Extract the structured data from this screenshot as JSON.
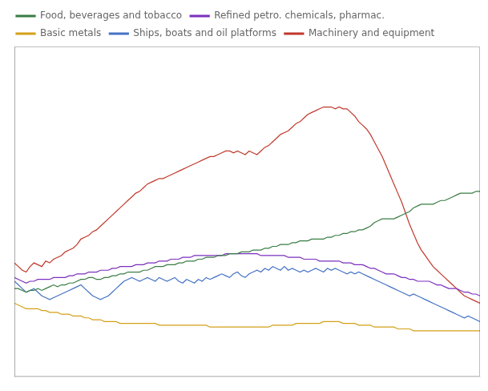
{
  "chart_data": {
    "type": "line",
    "x": [
      0,
      1,
      2,
      3,
      4,
      5,
      6,
      7,
      8,
      9,
      10,
      11,
      12,
      13,
      14,
      15,
      16,
      17,
      18,
      19,
      20,
      21,
      22,
      23,
      24,
      25,
      26,
      27,
      28,
      29,
      30,
      31,
      32,
      33,
      34,
      35,
      36,
      37,
      38,
      39,
      40,
      41,
      42,
      43,
      44,
      45,
      46,
      47,
      48,
      49,
      50,
      51,
      52,
      53,
      54,
      55,
      56,
      57,
      58,
      59,
      60,
      61,
      62,
      63,
      64,
      65,
      66,
      67,
      68,
      69,
      70,
      71,
      72,
      73,
      74,
      75,
      76,
      77,
      78,
      79,
      80,
      81,
      82,
      83,
      84,
      85,
      86,
      87,
      88,
      89,
      90,
      91,
      92,
      93,
      94,
      95,
      96,
      97,
      98,
      99,
      100,
      101,
      102,
      103,
      104,
      105,
      106,
      107,
      108,
      109,
      110,
      111,
      112,
      113,
      114,
      115,
      116,
      117,
      118,
      119
    ],
    "series": [
      {
        "name": "Food, beverages and tobacco",
        "color": "#3a7d44",
        "values": [
          68,
          68,
          67,
          66,
          67,
          67,
          68,
          67,
          68,
          69,
          70,
          69,
          70,
          70,
          71,
          71,
          72,
          73,
          73,
          74,
          74,
          73,
          73,
          74,
          74,
          75,
          75,
          76,
          76,
          77,
          77,
          77,
          77,
          78,
          78,
          79,
          80,
          80,
          80,
          81,
          81,
          81,
          82,
          82,
          83,
          83,
          83,
          84,
          84,
          85,
          85,
          85,
          86,
          86,
          86,
          87,
          87,
          87,
          88,
          88,
          88,
          89,
          89,
          89,
          90,
          90,
          91,
          91,
          92,
          92,
          92,
          93,
          93,
          94,
          94,
          94,
          95,
          95,
          95,
          95,
          96,
          96,
          97,
          97,
          98,
          98,
          99,
          99,
          100,
          100,
          101,
          102,
          104,
          105,
          106,
          106,
          106,
          106,
          107,
          108,
          109,
          110,
          112,
          113,
          114,
          114,
          114,
          114,
          115,
          116,
          116,
          117,
          118,
          119,
          120,
          120,
          120,
          120,
          121,
          121
        ]
      },
      {
        "name": "Refined petro. chemicals, pharmac.",
        "color": "#7b2fbe",
        "values": [
          74,
          73,
          72,
          71,
          72,
          72,
          73,
          73,
          73,
          73,
          74,
          74,
          74,
          74,
          75,
          75,
          76,
          76,
          76,
          77,
          77,
          77,
          78,
          78,
          78,
          79,
          79,
          80,
          80,
          80,
          80,
          81,
          81,
          81,
          82,
          82,
          82,
          83,
          83,
          83,
          84,
          84,
          84,
          85,
          85,
          85,
          86,
          86,
          86,
          86,
          86,
          86,
          86,
          86,
          87,
          87,
          87,
          87,
          87,
          87,
          87,
          87,
          87,
          86,
          86,
          86,
          86,
          86,
          86,
          86,
          85,
          85,
          85,
          85,
          84,
          84,
          84,
          84,
          83,
          83,
          83,
          83,
          83,
          83,
          82,
          82,
          82,
          81,
          81,
          81,
          80,
          79,
          79,
          78,
          77,
          76,
          76,
          76,
          75,
          74,
          74,
          73,
          73,
          72,
          72,
          72,
          72,
          71,
          70,
          70,
          69,
          68,
          68,
          68,
          67,
          66,
          66,
          65,
          65,
          64
        ]
      },
      {
        "name": "Basic metals",
        "color": "#d4a017",
        "values": [
          60,
          59,
          58,
          57,
          57,
          57,
          57,
          56,
          56,
          55,
          55,
          55,
          54,
          54,
          54,
          53,
          53,
          53,
          52,
          52,
          51,
          51,
          51,
          50,
          50,
          50,
          50,
          49,
          49,
          49,
          49,
          49,
          49,
          49,
          49,
          49,
          49,
          48,
          48,
          48,
          48,
          48,
          48,
          48,
          48,
          48,
          48,
          48,
          48,
          48,
          47,
          47,
          47,
          47,
          47,
          47,
          47,
          47,
          47,
          47,
          47,
          47,
          47,
          47,
          47,
          47,
          48,
          48,
          48,
          48,
          48,
          48,
          49,
          49,
          49,
          49,
          49,
          49,
          49,
          50,
          50,
          50,
          50,
          50,
          49,
          49,
          49,
          49,
          48,
          48,
          48,
          48,
          47,
          47,
          47,
          47,
          47,
          47,
          46,
          46,
          46,
          46,
          45,
          45,
          45,
          45,
          45,
          45,
          45,
          45,
          45,
          45,
          45,
          45,
          45,
          45,
          45,
          45,
          45,
          45
        ]
      },
      {
        "name": "Ships, boats and oil platforms",
        "color": "#4472c4",
        "values": [
          72,
          70,
          68,
          66,
          67,
          68,
          66,
          64,
          63,
          62,
          63,
          64,
          65,
          66,
          67,
          68,
          69,
          70,
          68,
          66,
          64,
          63,
          62,
          63,
          64,
          66,
          68,
          70,
          72,
          73,
          74,
          73,
          72,
          73,
          74,
          73,
          72,
          74,
          73,
          72,
          73,
          74,
          72,
          71,
          73,
          72,
          71,
          73,
          72,
          74,
          73,
          74,
          75,
          76,
          75,
          74,
          76,
          77,
          75,
          74,
          76,
          77,
          78,
          77,
          79,
          78,
          80,
          79,
          78,
          80,
          78,
          79,
          78,
          77,
          78,
          77,
          78,
          79,
          78,
          77,
          79,
          78,
          79,
          78,
          77,
          76,
          77,
          76,
          77,
          76,
          75,
          74,
          73,
          72,
          71,
          70,
          69,
          68,
          67,
          66,
          65,
          64,
          65,
          64,
          63,
          62,
          61,
          60,
          59,
          58,
          57,
          56,
          55,
          54,
          53,
          52,
          53,
          52,
          51,
          50
        ]
      },
      {
        "name": "Machinery and equipment",
        "color": "#c0392b",
        "values": [
          82,
          80,
          78,
          77,
          80,
          82,
          81,
          80,
          83,
          82,
          84,
          85,
          86,
          88,
          89,
          90,
          92,
          95,
          96,
          97,
          99,
          100,
          102,
          104,
          106,
          108,
          110,
          112,
          114,
          116,
          118,
          120,
          121,
          123,
          125,
          126,
          127,
          128,
          128,
          129,
          130,
          131,
          132,
          133,
          134,
          135,
          136,
          137,
          138,
          139,
          140,
          140,
          141,
          142,
          143,
          143,
          142,
          143,
          142,
          141,
          143,
          142,
          141,
          143,
          145,
          146,
          148,
          150,
          152,
          153,
          154,
          156,
          158,
          159,
          161,
          163,
          164,
          165,
          166,
          167,
          167,
          167,
          166,
          167,
          166,
          166,
          164,
          162,
          159,
          157,
          155,
          152,
          148,
          144,
          140,
          135,
          130,
          125,
          120,
          115,
          109,
          103,
          98,
          93,
          89,
          86,
          83,
          80,
          78,
          76,
          74,
          72,
          70,
          68,
          66,
          64,
          63,
          62,
          61,
          60
        ]
      }
    ],
    "xlim": [
      0,
      119
    ],
    "ylim": [
      20,
      200
    ],
    "tick_labels": false,
    "grid": false,
    "legend": "upper left"
  }
}
